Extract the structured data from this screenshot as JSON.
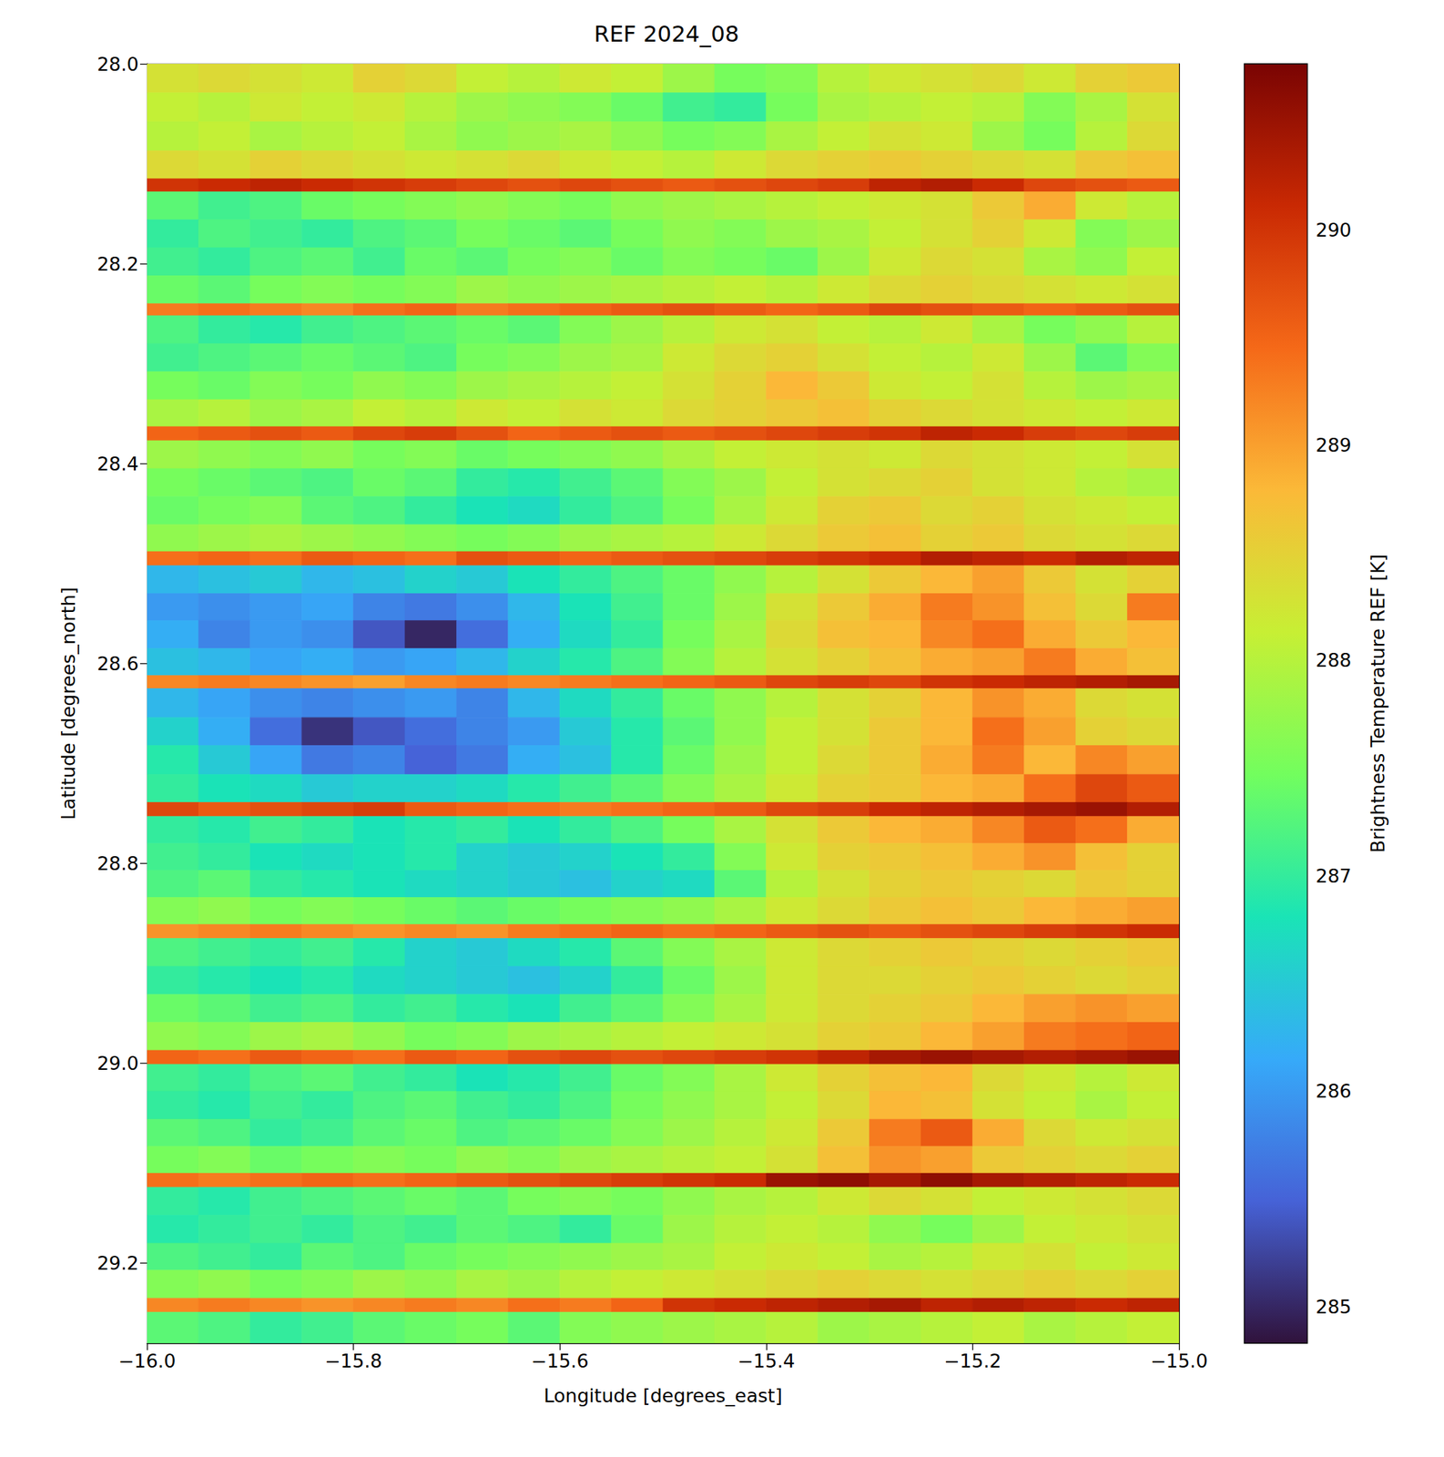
{
  "chart_data": {
    "type": "heatmap",
    "title": "REF 2024_08",
    "xlabel": "Longitude [degrees_east]",
    "ylabel": "Latitude [degrees_north]",
    "xlim": [
      -16.0,
      -15.0
    ],
    "ylim": [
      28.0,
      29.28
    ],
    "xticks": [
      {
        "value": -16.0,
        "label": "−16.0"
      },
      {
        "value": -15.8,
        "label": "−15.8"
      },
      {
        "value": -15.6,
        "label": "−15.6"
      },
      {
        "value": -15.4,
        "label": "−15.4"
      },
      {
        "value": -15.2,
        "label": "−15.2"
      },
      {
        "value": -15.0,
        "label": "−15.0"
      }
    ],
    "yticks": [
      {
        "value": 28.0,
        "label": "28.0"
      },
      {
        "value": 28.2,
        "label": "28.2"
      },
      {
        "value": 28.4,
        "label": "28.4"
      },
      {
        "value": 28.6,
        "label": "28.6"
      },
      {
        "value": 28.8,
        "label": "28.8"
      },
      {
        "value": 29.0,
        "label": "29.0"
      },
      {
        "value": 29.2,
        "label": "29.2"
      }
    ],
    "grid": false,
    "x_edges": [
      -16.0,
      -15.95,
      -15.9,
      -15.85,
      -15.8,
      -15.75,
      -15.7,
      -15.65,
      -15.6,
      -15.55,
      -15.5,
      -15.45,
      -15.4,
      -15.35,
      -15.3,
      -15.25,
      -15.2,
      -15.15,
      -15.1,
      -15.05,
      -15.0
    ],
    "y_edges": [
      28.0,
      28.029,
      28.058,
      28.087,
      28.115,
      28.128,
      28.156,
      28.184,
      28.212,
      28.24,
      28.252,
      28.28,
      28.308,
      28.336,
      28.363,
      28.377,
      28.405,
      28.433,
      28.461,
      28.488,
      28.502,
      28.53,
      28.557,
      28.585,
      28.612,
      28.625,
      28.654,
      28.682,
      28.711,
      28.739,
      28.753,
      28.78,
      28.807,
      28.834,
      28.861,
      28.875,
      28.903,
      28.931,
      28.959,
      28.987,
      29.001,
      29.028,
      29.056,
      29.083,
      29.11,
      29.124,
      29.152,
      29.18,
      29.207,
      29.235,
      29.249,
      29.28
    ],
    "cells": [
      [
        288.3,
        288.4,
        288.3,
        288.2,
        288.5,
        288.4,
        288.1,
        288.0,
        288.2,
        288.1,
        287.8,
        287.5,
        287.6,
        288.0,
        288.2,
        288.3,
        288.4,
        288.2,
        288.5,
        288.6
      ],
      [
        288.1,
        288.0,
        288.2,
        288.1,
        288.2,
        288.0,
        287.8,
        287.7,
        287.6,
        287.4,
        287.1,
        287.0,
        287.5,
        287.9,
        288.0,
        288.1,
        288.0,
        287.6,
        287.9,
        288.3
      ],
      [
        288.0,
        288.1,
        287.9,
        288.0,
        288.1,
        287.9,
        287.7,
        287.8,
        287.9,
        287.7,
        287.5,
        287.6,
        287.9,
        288.1,
        288.3,
        288.2,
        287.8,
        287.5,
        288.0,
        288.4
      ],
      [
        288.4,
        288.3,
        288.5,
        288.4,
        288.3,
        288.2,
        288.3,
        288.4,
        288.2,
        288.1,
        288.0,
        288.2,
        288.4,
        288.5,
        288.6,
        288.5,
        288.4,
        288.3,
        288.6,
        288.7
      ],
      [
        290.0,
        290.1,
        290.2,
        290.1,
        290.0,
        289.9,
        289.8,
        289.7,
        289.8,
        289.7,
        289.6,
        289.7,
        289.8,
        289.9,
        290.2,
        290.3,
        290.1,
        289.8,
        289.7,
        289.6
      ],
      [
        287.3,
        287.1,
        287.2,
        287.4,
        287.5,
        287.6,
        287.7,
        287.6,
        287.5,
        287.7,
        287.8,
        287.9,
        288.0,
        288.1,
        288.2,
        288.3,
        288.6,
        288.9,
        288.2,
        288.0
      ],
      [
        287.0,
        287.2,
        287.1,
        287.0,
        287.2,
        287.3,
        287.5,
        287.4,
        287.3,
        287.5,
        287.7,
        287.6,
        287.8,
        287.9,
        288.1,
        288.3,
        288.5,
        288.2,
        287.6,
        287.8
      ],
      [
        287.1,
        287.0,
        287.2,
        287.3,
        287.1,
        287.4,
        287.3,
        287.5,
        287.6,
        287.4,
        287.6,
        287.5,
        287.4,
        287.8,
        288.2,
        288.4,
        288.3,
        287.9,
        287.7,
        288.1
      ],
      [
        287.4,
        287.3,
        287.5,
        287.6,
        287.5,
        287.6,
        287.8,
        287.7,
        287.8,
        287.9,
        288.0,
        288.1,
        288.0,
        288.2,
        288.4,
        288.5,
        288.4,
        288.3,
        288.2,
        288.3
      ],
      [
        289.3,
        289.4,
        289.3,
        289.2,
        289.4,
        289.5,
        289.3,
        289.4,
        289.5,
        289.6,
        289.7,
        289.6,
        289.5,
        289.6,
        289.8,
        289.7,
        289.6,
        289.5,
        289.6,
        289.7
      ],
      [
        287.2,
        287.0,
        286.9,
        287.1,
        287.2,
        287.3,
        287.4,
        287.3,
        287.6,
        287.8,
        288.0,
        288.2,
        288.3,
        288.1,
        288.0,
        288.2,
        287.9,
        287.5,
        287.7,
        288.0
      ],
      [
        287.1,
        287.2,
        287.3,
        287.4,
        287.3,
        287.2,
        287.5,
        287.6,
        287.8,
        287.9,
        288.2,
        288.4,
        288.5,
        288.3,
        288.1,
        288.0,
        288.2,
        287.8,
        287.3,
        287.6
      ],
      [
        287.5,
        287.4,
        287.6,
        287.5,
        287.7,
        287.6,
        287.8,
        287.9,
        288.0,
        288.1,
        288.3,
        288.5,
        288.8,
        288.6,
        288.2,
        288.1,
        288.3,
        288.0,
        287.8,
        287.9
      ],
      [
        287.9,
        288.0,
        287.8,
        287.9,
        288.1,
        288.0,
        288.2,
        288.1,
        288.3,
        288.2,
        288.4,
        288.5,
        288.6,
        288.7,
        288.5,
        288.4,
        288.3,
        288.2,
        288.1,
        288.2
      ],
      [
        289.5,
        289.6,
        289.7,
        289.6,
        289.8,
        289.9,
        289.7,
        289.5,
        289.6,
        289.7,
        289.6,
        289.7,
        289.8,
        289.9,
        290.0,
        290.2,
        290.1,
        289.9,
        289.8,
        289.9
      ],
      [
        287.8,
        287.7,
        287.6,
        287.7,
        287.5,
        287.6,
        287.4,
        287.5,
        287.6,
        287.7,
        287.9,
        288.1,
        288.2,
        288.3,
        288.2,
        288.4,
        288.3,
        288.2,
        288.1,
        288.3
      ],
      [
        287.5,
        287.4,
        287.3,
        287.2,
        287.4,
        287.3,
        287.0,
        286.9,
        287.1,
        287.3,
        287.6,
        287.8,
        288.1,
        288.3,
        288.4,
        288.5,
        288.3,
        288.2,
        288.0,
        287.9
      ],
      [
        287.4,
        287.5,
        287.6,
        287.3,
        287.2,
        287.0,
        286.8,
        286.7,
        287.0,
        287.2,
        287.5,
        287.9,
        288.2,
        288.5,
        288.6,
        288.4,
        288.5,
        288.3,
        288.2,
        288.1
      ],
      [
        287.7,
        287.8,
        287.9,
        287.8,
        287.7,
        287.6,
        287.5,
        287.6,
        287.8,
        287.9,
        288.0,
        288.2,
        288.4,
        288.6,
        288.7,
        288.5,
        288.6,
        288.4,
        288.3,
        288.4
      ],
      [
        289.4,
        289.5,
        289.4,
        289.6,
        289.5,
        289.4,
        289.7,
        289.6,
        289.5,
        289.6,
        289.7,
        289.8,
        289.9,
        290.0,
        290.1,
        290.3,
        290.2,
        290.1,
        290.3,
        290.2
      ],
      [
        286.3,
        286.4,
        286.5,
        286.3,
        286.4,
        286.6,
        286.5,
        286.8,
        287.0,
        287.2,
        287.4,
        287.7,
        288.0,
        288.3,
        288.6,
        288.8,
        289.0,
        288.6,
        288.3,
        288.5
      ],
      [
        286.0,
        285.9,
        286.0,
        286.1,
        285.8,
        285.7,
        285.9,
        286.3,
        286.8,
        287.1,
        287.4,
        287.8,
        288.3,
        288.6,
        288.9,
        289.3,
        289.1,
        288.7,
        288.4,
        289.3
      ],
      [
        286.2,
        285.8,
        286.0,
        285.9,
        285.4,
        285.0,
        285.6,
        286.2,
        286.7,
        287.0,
        287.5,
        287.9,
        288.4,
        288.7,
        288.8,
        289.2,
        289.4,
        288.9,
        288.6,
        288.8
      ],
      [
        286.4,
        286.3,
        286.1,
        286.2,
        286.0,
        286.1,
        286.3,
        286.6,
        286.9,
        287.2,
        287.6,
        288.0,
        288.3,
        288.5,
        288.7,
        288.9,
        289.0,
        289.3,
        288.9,
        288.7
      ],
      [
        289.2,
        289.3,
        289.2,
        289.1,
        289.0,
        289.2,
        289.3,
        289.2,
        289.3,
        289.4,
        289.5,
        289.6,
        289.8,
        289.9,
        289.8,
        290.0,
        290.1,
        290.2,
        290.3,
        290.4
      ],
      [
        286.3,
        286.1,
        285.9,
        285.8,
        285.9,
        286.0,
        285.8,
        286.3,
        286.7,
        287.0,
        287.4,
        287.7,
        288.0,
        288.3,
        288.5,
        288.8,
        289.1,
        288.9,
        288.4,
        288.3
      ],
      [
        286.6,
        286.2,
        285.6,
        285.1,
        285.4,
        285.6,
        285.8,
        286.0,
        286.5,
        286.9,
        287.3,
        287.7,
        288.1,
        288.3,
        288.6,
        288.8,
        289.4,
        289.0,
        288.5,
        288.4
      ],
      [
        286.9,
        286.5,
        286.1,
        285.7,
        285.8,
        285.5,
        285.7,
        286.2,
        286.4,
        286.9,
        287.4,
        287.8,
        288.1,
        288.4,
        288.6,
        288.9,
        289.3,
        288.8,
        289.2,
        289.0
      ],
      [
        287.0,
        286.8,
        286.7,
        286.5,
        286.6,
        286.6,
        286.7,
        286.9,
        287.1,
        287.3,
        287.6,
        287.9,
        288.2,
        288.5,
        288.6,
        288.8,
        288.9,
        289.4,
        289.8,
        289.6
      ],
      [
        289.8,
        289.6,
        289.7,
        289.8,
        289.9,
        289.6,
        289.5,
        289.4,
        289.3,
        289.4,
        289.5,
        289.6,
        289.8,
        289.9,
        290.1,
        290.2,
        290.3,
        290.4,
        290.5,
        290.3
      ],
      [
        287.0,
        286.9,
        287.1,
        287.0,
        286.8,
        286.9,
        287.0,
        286.8,
        287.0,
        287.2,
        287.5,
        287.9,
        288.3,
        288.6,
        288.8,
        288.9,
        289.2,
        289.6,
        289.4,
        288.9
      ],
      [
        287.1,
        287.0,
        286.8,
        286.7,
        286.8,
        286.9,
        286.6,
        286.5,
        286.6,
        286.8,
        287.0,
        287.6,
        288.2,
        288.5,
        288.6,
        288.7,
        288.9,
        289.1,
        288.7,
        288.5
      ],
      [
        287.2,
        287.3,
        287.0,
        286.9,
        286.8,
        286.7,
        286.6,
        286.5,
        286.4,
        286.6,
        286.7,
        287.3,
        288.0,
        288.3,
        288.5,
        288.6,
        288.5,
        288.4,
        288.6,
        288.5
      ],
      [
        287.6,
        287.7,
        287.5,
        287.6,
        287.5,
        287.4,
        287.3,
        287.4,
        287.5,
        287.6,
        287.7,
        287.9,
        288.2,
        288.4,
        288.6,
        288.7,
        288.6,
        288.8,
        288.9,
        289.0
      ],
      [
        289.1,
        289.2,
        289.3,
        289.2,
        289.1,
        289.2,
        289.1,
        289.3,
        289.4,
        289.5,
        289.4,
        289.5,
        289.6,
        289.7,
        289.6,
        289.7,
        289.8,
        289.9,
        290.0,
        290.1
      ],
      [
        287.2,
        287.1,
        287.0,
        287.1,
        286.9,
        286.6,
        286.5,
        286.7,
        286.9,
        287.3,
        287.6,
        287.9,
        288.2,
        288.4,
        288.5,
        288.6,
        288.5,
        288.4,
        288.5,
        288.6
      ],
      [
        287.0,
        286.9,
        286.8,
        286.9,
        286.7,
        286.6,
        286.5,
        286.4,
        286.6,
        287.0,
        287.4,
        287.8,
        288.2,
        288.4,
        288.4,
        288.5,
        288.6,
        288.5,
        288.4,
        288.5
      ],
      [
        287.4,
        287.3,
        287.1,
        287.2,
        287.0,
        287.1,
        286.9,
        286.8,
        287.1,
        287.3,
        287.6,
        287.9,
        288.2,
        288.4,
        288.5,
        288.6,
        288.8,
        289.0,
        289.1,
        289.0
      ],
      [
        287.7,
        287.6,
        287.8,
        287.9,
        287.7,
        287.5,
        287.6,
        287.8,
        287.9,
        288.0,
        288.1,
        288.2,
        288.3,
        288.5,
        288.6,
        288.8,
        289.0,
        289.3,
        289.4,
        289.5
      ],
      [
        289.5,
        289.4,
        289.6,
        289.5,
        289.4,
        289.6,
        289.5,
        289.7,
        289.8,
        289.7,
        289.8,
        289.9,
        290.0,
        290.2,
        290.4,
        290.5,
        290.4,
        290.3,
        290.4,
        290.5
      ],
      [
        287.1,
        287.0,
        287.2,
        287.3,
        287.1,
        287.0,
        286.8,
        286.9,
        287.1,
        287.4,
        287.6,
        287.9,
        288.2,
        288.5,
        288.7,
        288.8,
        288.4,
        288.2,
        288.0,
        288.2
      ],
      [
        287.0,
        286.9,
        287.1,
        287.0,
        287.2,
        287.3,
        287.1,
        287.0,
        287.2,
        287.5,
        287.7,
        287.9,
        288.1,
        288.4,
        288.8,
        288.7,
        288.3,
        288.1,
        287.9,
        288.1
      ],
      [
        287.3,
        287.2,
        287.0,
        287.1,
        287.3,
        287.4,
        287.2,
        287.3,
        287.4,
        287.6,
        287.8,
        288.0,
        288.2,
        288.6,
        289.3,
        289.6,
        288.9,
        288.4,
        288.2,
        288.3
      ],
      [
        287.5,
        287.6,
        287.4,
        287.5,
        287.6,
        287.5,
        287.7,
        287.6,
        287.8,
        287.9,
        288.0,
        288.1,
        288.3,
        288.7,
        289.1,
        289.0,
        288.6,
        288.5,
        288.4,
        288.5
      ],
      [
        289.4,
        289.3,
        289.4,
        289.5,
        289.4,
        289.5,
        289.6,
        289.7,
        289.8,
        289.9,
        290.0,
        290.1,
        290.5,
        290.6,
        290.4,
        290.6,
        290.4,
        290.3,
        290.2,
        290.1
      ],
      [
        287.0,
        286.9,
        287.1,
        287.2,
        287.3,
        287.4,
        287.3,
        287.5,
        287.6,
        287.5,
        287.7,
        287.9,
        288.0,
        288.2,
        288.4,
        288.3,
        288.1,
        288.2,
        288.3,
        288.4
      ],
      [
        286.9,
        287.0,
        287.1,
        287.0,
        287.2,
        287.1,
        287.3,
        287.2,
        287.0,
        287.4,
        287.8,
        288.0,
        288.1,
        288.0,
        287.7,
        287.5,
        287.8,
        288.1,
        288.2,
        288.3
      ],
      [
        287.2,
        287.1,
        287.0,
        287.3,
        287.2,
        287.4,
        287.5,
        287.6,
        287.7,
        287.8,
        287.9,
        288.1,
        288.2,
        288.1,
        287.9,
        288.0,
        288.2,
        288.3,
        288.1,
        288.2
      ],
      [
        287.6,
        287.7,
        287.5,
        287.6,
        287.8,
        287.7,
        287.9,
        287.8,
        288.0,
        288.1,
        288.2,
        288.3,
        288.4,
        288.5,
        288.4,
        288.3,
        288.4,
        288.5,
        288.4,
        288.5
      ],
      [
        289.2,
        289.3,
        289.2,
        289.1,
        289.2,
        289.3,
        289.2,
        289.4,
        289.3,
        289.5,
        290.0,
        290.1,
        290.2,
        290.3,
        290.4,
        290.2,
        290.3,
        290.2,
        290.1,
        290.2
      ],
      [
        287.3,
        287.2,
        287.0,
        287.1,
        287.3,
        287.4,
        287.5,
        287.3,
        287.6,
        287.7,
        287.8,
        287.9,
        288.0,
        287.8,
        287.9,
        288.0,
        288.1,
        287.9,
        288.0,
        288.1
      ]
    ],
    "colorbar": {
      "label": "Brightness Temperature REF [K]",
      "range": [
        284.83,
        290.77
      ],
      "ticks": [
        285,
        286,
        287,
        288,
        289,
        290
      ]
    }
  }
}
